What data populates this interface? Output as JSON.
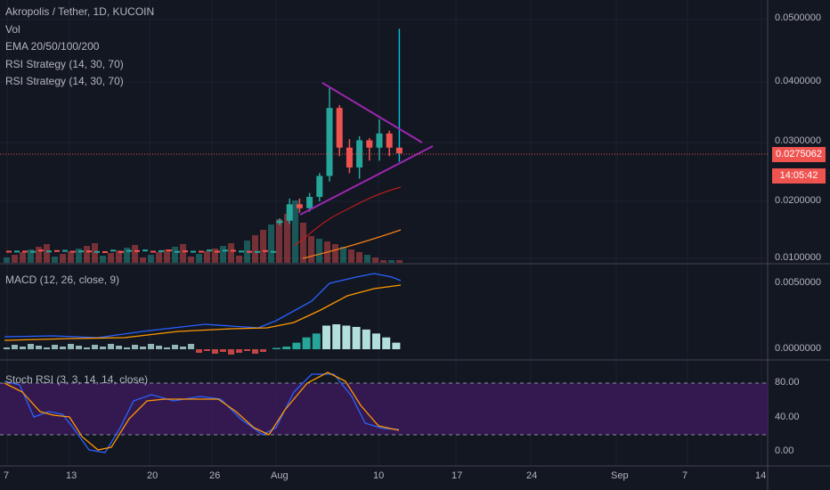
{
  "header": {
    "symbol_line": "Akropolis / Tether, 1D, KUCOIN",
    "indicators": [
      "Vol",
      "EMA 20/50/100/200",
      "RSI Strategy (14, 30, 70)",
      "RSI Strategy (14, 30, 70)"
    ]
  },
  "panes": {
    "macd_title": "MACD (12, 26, close, 9)",
    "stoch_title": "Stoch RSI (3, 3, 14, 14, close)"
  },
  "price_axis": {
    "labels": [
      "0.0500000",
      "0.0400000",
      "0.0300000",
      "0.0200000",
      "0.0100000"
    ],
    "current_price": "0.0275062",
    "countdown": "14:05:42"
  },
  "macd_axis": {
    "labels": [
      "0.0050000",
      "0.0000000"
    ]
  },
  "stoch_axis": {
    "labels": [
      "80.00",
      "40.00",
      "0.00"
    ]
  },
  "time_axis": {
    "labels": [
      "7",
      "13",
      "20",
      "26",
      "Aug",
      "10",
      "17",
      "24",
      "Sep",
      "7",
      "14"
    ]
  },
  "colors": {
    "background": "#131722",
    "up": "#26a69a",
    "down": "#ef5350",
    "wick_highlight": "#00bcd4",
    "triangle": "#9c27b0",
    "ema_fast": "#b71c1c",
    "ema_slow": "#f57f17",
    "macd_line": "#2962ff",
    "signal_line": "#ff9800",
    "stoch_band": "#4a1e6b",
    "stoch_k": "#2962ff",
    "stoch_d": "#ff9800"
  },
  "chart_data": {
    "type": "candlestick",
    "ylim": [
      0.008,
      0.053
    ],
    "candles": [
      {
        "o": 0.0152,
        "h": 0.016,
        "l": 0.0148,
        "c": 0.0156
      },
      {
        "o": 0.0156,
        "h": 0.0195,
        "l": 0.015,
        "c": 0.0185
      },
      {
        "o": 0.0185,
        "h": 0.0195,
        "l": 0.017,
        "c": 0.0178
      },
      {
        "o": 0.0178,
        "h": 0.0205,
        "l": 0.0172,
        "c": 0.0198
      },
      {
        "o": 0.0198,
        "h": 0.024,
        "l": 0.019,
        "c": 0.0235
      },
      {
        "o": 0.0235,
        "h": 0.039,
        "l": 0.0225,
        "c": 0.0355
      },
      {
        "o": 0.0355,
        "h": 0.036,
        "l": 0.027,
        "c": 0.0285
      },
      {
        "o": 0.0285,
        "h": 0.03,
        "l": 0.024,
        "c": 0.025
      },
      {
        "o": 0.025,
        "h": 0.0305,
        "l": 0.023,
        "c": 0.0298
      },
      {
        "o": 0.0298,
        "h": 0.0302,
        "l": 0.0262,
        "c": 0.0285
      },
      {
        "o": 0.0285,
        "h": 0.0335,
        "l": 0.0262,
        "c": 0.031
      },
      {
        "o": 0.031,
        "h": 0.0315,
        "l": 0.027,
        "c": 0.0285
      },
      {
        "o": 0.0285,
        "h": 0.0495,
        "l": 0.026,
        "c": 0.0275
      }
    ],
    "macd_hist": [
      0.0001,
      0.0002,
      0.0005,
      0.0009,
      0.0012,
      0.0018,
      0.0019,
      0.0018,
      0.0017,
      0.0015,
      0.0012,
      0.0009,
      0.0005
    ],
    "stoch_k": [
      92,
      55,
      45,
      40,
      28,
      22,
      20,
      25,
      88,
      92,
      88,
      80,
      70,
      40,
      30,
      28,
      27,
      26,
      25
    ],
    "stoch_d": [
      80,
      60,
      50,
      42,
      32,
      24,
      22,
      24,
      70,
      88,
      90,
      85,
      75,
      48,
      35,
      30,
      28,
      27,
      26
    ]
  }
}
